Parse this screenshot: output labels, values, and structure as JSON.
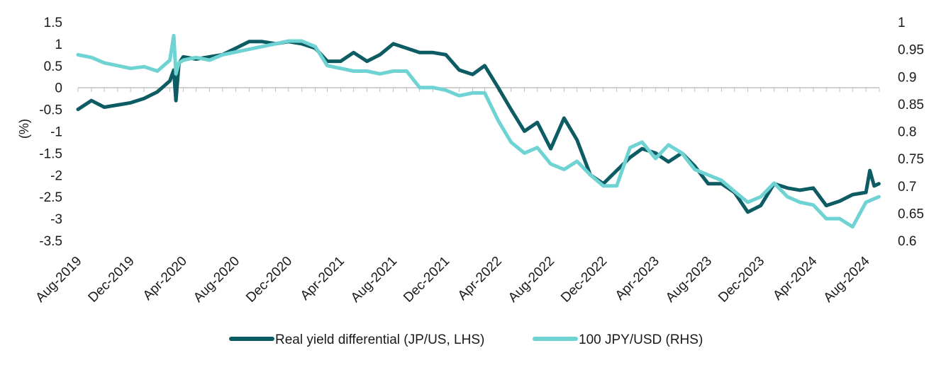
{
  "chart_data": {
    "type": "line",
    "title": "",
    "xlabel": "",
    "ylabel": "(%)",
    "ylabel_right": "",
    "ylim": [
      -3.5,
      1.5
    ],
    "ylim_right": [
      0.6,
      1.0
    ],
    "yticks_left": [
      "1.5",
      "1",
      "0.5",
      "0",
      "-0.5",
      "-1",
      "-1.5",
      "-2",
      "-2.5",
      "-3",
      "-3.5"
    ],
    "yticks_right": [
      "1",
      "0.95",
      "0.9",
      "0.85",
      "0.8",
      "0.75",
      "0.7",
      "0.65",
      "0.6"
    ],
    "xticks": [
      "Aug-2019",
      "Dec-2019",
      "Apr-2020",
      "Aug-2020",
      "Dec-2020",
      "Apr-2021",
      "Aug-2021",
      "Dec-2021",
      "Apr-2022",
      "Aug-2022",
      "Dec-2022",
      "Apr-2023",
      "Aug-2023",
      "Dec-2023",
      "Apr-2024",
      "Aug-2024"
    ],
    "grid": false,
    "legend_position": "bottom",
    "series": [
      {
        "name": "Real yield differential (JP/US, LHS)",
        "axis": "left",
        "color": "#0d5c63",
        "x": [
          "2019-08-01",
          "2019-09-01",
          "2019-10-01",
          "2019-11-01",
          "2019-12-01",
          "2020-01-01",
          "2020-02-01",
          "2020-03-01",
          "2020-03-10",
          "2020-03-15",
          "2020-03-22",
          "2020-04-01",
          "2020-05-01",
          "2020-06-01",
          "2020-07-01",
          "2020-08-01",
          "2020-09-01",
          "2020-10-01",
          "2020-11-01",
          "2020-12-01",
          "2021-01-01",
          "2021-02-01",
          "2021-03-01",
          "2021-04-01",
          "2021-05-01",
          "2021-06-01",
          "2021-07-01",
          "2021-08-01",
          "2021-09-01",
          "2021-10-01",
          "2021-11-01",
          "2021-12-01",
          "2022-01-01",
          "2022-02-01",
          "2022-03-01",
          "2022-04-01",
          "2022-05-01",
          "2022-06-01",
          "2022-07-01",
          "2022-08-01",
          "2022-09-01",
          "2022-10-01",
          "2022-11-01",
          "2022-12-01",
          "2023-01-01",
          "2023-02-01",
          "2023-03-01",
          "2023-04-01",
          "2023-05-01",
          "2023-06-01",
          "2023-07-01",
          "2023-08-01",
          "2023-09-01",
          "2023-10-01",
          "2023-11-01",
          "2023-12-01",
          "2024-01-01",
          "2024-02-01",
          "2024-03-01",
          "2024-04-01",
          "2024-05-01",
          "2024-06-01",
          "2024-07-01",
          "2024-08-01",
          "2024-08-10",
          "2024-08-20",
          "2024-08-31"
        ],
        "values": [
          -0.5,
          -0.3,
          -0.45,
          -0.4,
          -0.35,
          -0.25,
          -0.1,
          0.15,
          0.4,
          -0.3,
          0.55,
          0.7,
          0.65,
          0.7,
          0.75,
          0.9,
          1.05,
          1.05,
          1.0,
          1.05,
          1.0,
          0.9,
          0.6,
          0.6,
          0.8,
          0.6,
          0.75,
          1.0,
          0.9,
          0.8,
          0.8,
          0.75,
          0.4,
          0.3,
          0.5,
          0.0,
          -0.5,
          -1.0,
          -0.8,
          -1.4,
          -0.7,
          -1.2,
          -2.0,
          -2.2,
          -1.9,
          -1.6,
          -1.4,
          -1.5,
          -1.7,
          -1.5,
          -1.8,
          -2.2,
          -2.2,
          -2.4,
          -2.85,
          -2.7,
          -2.2,
          -2.3,
          -2.35,
          -2.3,
          -2.7,
          -2.6,
          -2.45,
          -2.4,
          -1.9,
          -2.25,
          -2.2
        ]
      },
      {
        "name": "100 JPY/USD (RHS)",
        "axis": "right",
        "color": "#6fd3d3",
        "x": [
          "2019-08-01",
          "2019-09-01",
          "2019-10-01",
          "2019-11-01",
          "2019-12-01",
          "2020-01-01",
          "2020-02-01",
          "2020-03-01",
          "2020-03-10",
          "2020-03-15",
          "2020-03-22",
          "2020-04-01",
          "2020-05-01",
          "2020-06-01",
          "2020-07-01",
          "2020-08-01",
          "2020-09-01",
          "2020-10-01",
          "2020-11-01",
          "2020-12-01",
          "2021-01-01",
          "2021-02-01",
          "2021-03-01",
          "2021-04-01",
          "2021-05-01",
          "2021-06-01",
          "2021-07-01",
          "2021-08-01",
          "2021-09-01",
          "2021-10-01",
          "2021-11-01",
          "2021-12-01",
          "2022-01-01",
          "2022-02-01",
          "2022-03-01",
          "2022-04-01",
          "2022-05-01",
          "2022-06-01",
          "2022-07-01",
          "2022-08-01",
          "2022-09-01",
          "2022-10-01",
          "2022-11-01",
          "2022-12-01",
          "2023-01-01",
          "2023-02-01",
          "2023-03-01",
          "2023-04-01",
          "2023-05-01",
          "2023-06-01",
          "2023-07-01",
          "2023-08-01",
          "2023-09-01",
          "2023-10-01",
          "2023-11-01",
          "2023-12-01",
          "2024-01-01",
          "2024-02-01",
          "2024-03-01",
          "2024-04-01",
          "2024-05-01",
          "2024-06-01",
          "2024-07-01",
          "2024-08-01",
          "2024-08-31"
        ],
        "values": [
          0.94,
          0.935,
          0.925,
          0.92,
          0.915,
          0.918,
          0.91,
          0.93,
          0.975,
          0.905,
          0.925,
          0.93,
          0.935,
          0.93,
          0.94,
          0.945,
          0.95,
          0.955,
          0.96,
          0.965,
          0.965,
          0.955,
          0.92,
          0.915,
          0.91,
          0.91,
          0.905,
          0.91,
          0.91,
          0.88,
          0.88,
          0.875,
          0.865,
          0.87,
          0.87,
          0.82,
          0.78,
          0.76,
          0.77,
          0.74,
          0.73,
          0.745,
          0.72,
          0.7,
          0.7,
          0.77,
          0.78,
          0.75,
          0.775,
          0.76,
          0.73,
          0.72,
          0.71,
          0.69,
          0.67,
          0.68,
          0.705,
          0.68,
          0.67,
          0.665,
          0.64,
          0.64,
          0.625,
          0.67,
          0.68
        ]
      }
    ]
  }
}
